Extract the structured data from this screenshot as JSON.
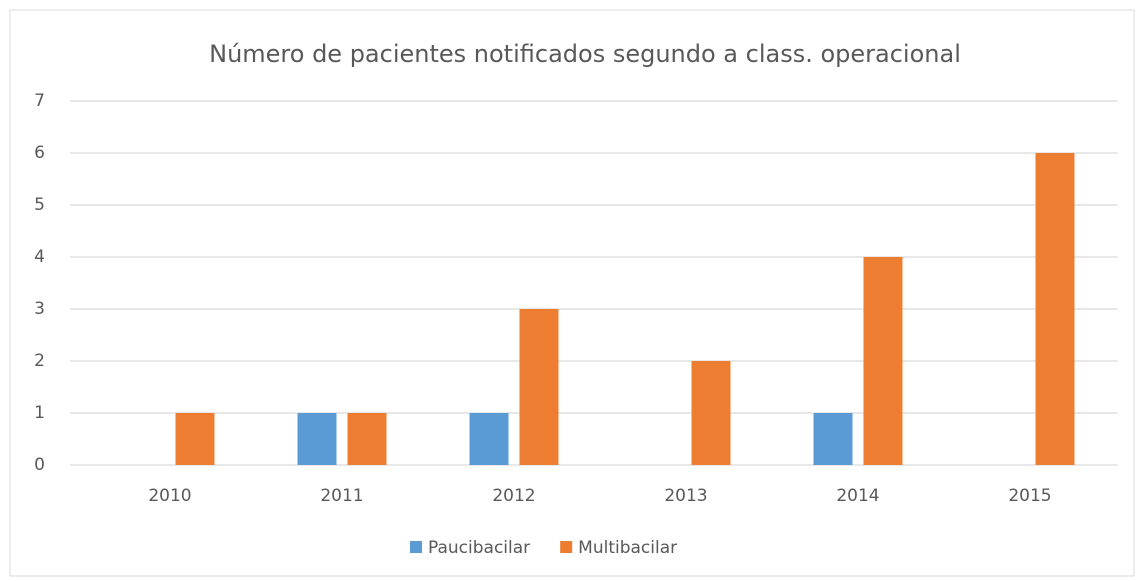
{
  "chart_data": {
    "type": "bar",
    "title": "Número de pacientes notificados segundo a class. operacional",
    "categories": [
      "2010",
      "2011",
      "2012",
      "2013",
      "2014",
      "2015"
    ],
    "series": [
      {
        "name": "Paucibacilar",
        "color": "#5b9bd5",
        "values": [
          0,
          1,
          1,
          0,
          1,
          0
        ]
      },
      {
        "name": "Multibacilar",
        "color": "#ed7d31",
        "values": [
          1,
          1,
          3,
          2,
          4,
          6
        ]
      }
    ],
    "ylim": [
      0,
      7
    ],
    "yticks": [
      0,
      1,
      2,
      3,
      4,
      5,
      6,
      7
    ],
    "grid": true,
    "legend": "bottom"
  }
}
